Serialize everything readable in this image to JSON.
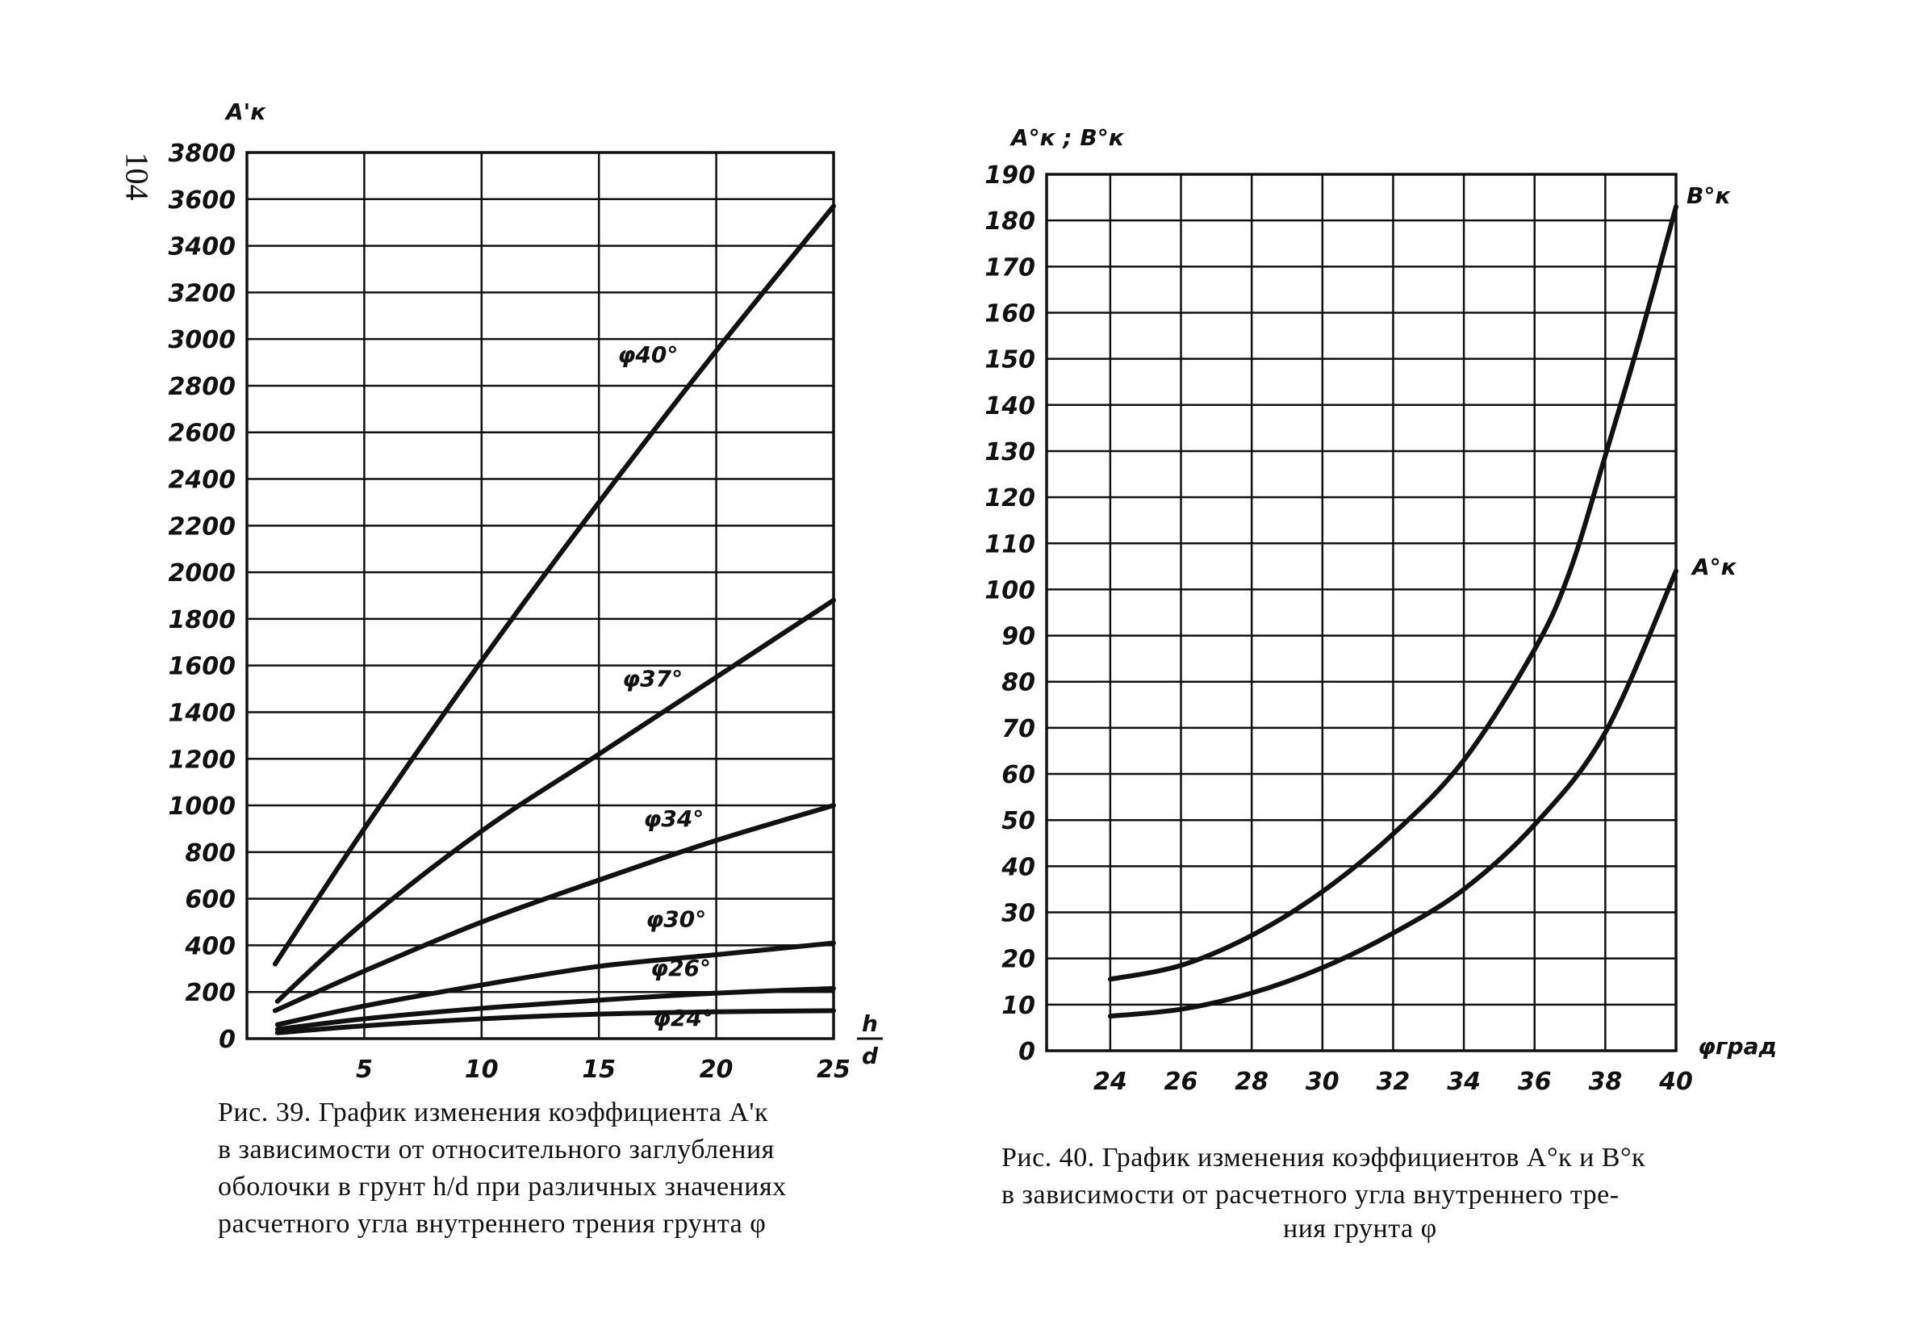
{
  "page_number": "104",
  "chart_data": [
    {
      "type": "line",
      "figure": "Рис. 39",
      "xlabel_num": "h",
      "xlabel_den": "d",
      "ylabel": "A'к",
      "xlim": [
        0,
        25
      ],
      "ylim": [
        0,
        3800
      ],
      "xticks": [
        5,
        10,
        15,
        20,
        25
      ],
      "yticks": [
        0,
        200,
        400,
        600,
        800,
        1000,
        1200,
        1400,
        1600,
        1800,
        2000,
        2200,
        2400,
        2600,
        2800,
        3000,
        3200,
        3400,
        3600,
        3800
      ],
      "grid": true,
      "series": [
        {
          "name": "φ40°",
          "label_at": [
            15.8,
            2900
          ],
          "x": [
            1.2,
            5,
            10,
            15,
            20,
            25
          ],
          "y": [
            320,
            900,
            1620,
            2300,
            2950,
            3570
          ]
        },
        {
          "name": "φ37°",
          "label_at": [
            16.0,
            1510
          ],
          "x": [
            1.3,
            5,
            10,
            15,
            20,
            25
          ],
          "y": [
            160,
            500,
            890,
            1220,
            1550,
            1880
          ]
        },
        {
          "name": "φ34°",
          "label_at": [
            16.9,
            910
          ],
          "x": [
            1.2,
            5,
            10,
            15,
            20,
            25
          ],
          "y": [
            120,
            290,
            500,
            680,
            850,
            1000
          ]
        },
        {
          "name": "φ30°",
          "label_at": [
            17.0,
            480
          ],
          "x": [
            1.3,
            5,
            10,
            15,
            20,
            25
          ],
          "y": [
            60,
            140,
            230,
            310,
            360,
            410
          ]
        },
        {
          "name": "φ26°",
          "label_at": [
            17.2,
            270
          ],
          "x": [
            1.3,
            5,
            10,
            15,
            20,
            25
          ],
          "y": [
            40,
            85,
            130,
            165,
            195,
            215
          ]
        },
        {
          "name": "φ24°",
          "label_at": [
            17.3,
            55
          ],
          "x": [
            1.3,
            5,
            10,
            15,
            20,
            25
          ],
          "y": [
            25,
            55,
            85,
            105,
            115,
            120
          ]
        }
      ]
    },
    {
      "type": "line",
      "figure": "Рис. 40",
      "xlabel": "φград",
      "ylabel": "A°к ; B°к",
      "xlim": [
        22.2,
        40
      ],
      "ylim": [
        0,
        190
      ],
      "xticks": [
        24,
        26,
        28,
        30,
        32,
        34,
        36,
        38,
        40
      ],
      "yticks": [
        0,
        10,
        20,
        30,
        40,
        50,
        60,
        70,
        80,
        90,
        100,
        110,
        120,
        130,
        140,
        150,
        160,
        170,
        180,
        190
      ],
      "grid": true,
      "series": [
        {
          "name": "B°к",
          "x": [
            24,
            26,
            28,
            30,
            32,
            34,
            36,
            37,
            38,
            39,
            40
          ],
          "y": [
            15.5,
            18.5,
            25,
            34.5,
            47,
            63,
            87,
            104,
            129,
            155,
            183
          ]
        },
        {
          "name": "A°к",
          "x": [
            24,
            26,
            28,
            30,
            32,
            34,
            36,
            38,
            40
          ],
          "y": [
            7.5,
            9,
            12.5,
            18,
            25.5,
            35,
            49,
            69,
            104
          ]
        }
      ]
    }
  ],
  "captions": {
    "fig39": [
      "Рис. 39. График изменения  коэффициента A'к",
      "в зависимости от относительного заглубления",
      "оболочки в грунт h/d при различных значениях",
      "расчетного угла внутреннего трения грунта φ"
    ],
    "fig40": [
      "Рис. 40. График изменения коэффициентов A°к  и B°к",
      "в зависимости  от расчетного угла внутреннего тре-",
      "ния грунта φ"
    ]
  }
}
